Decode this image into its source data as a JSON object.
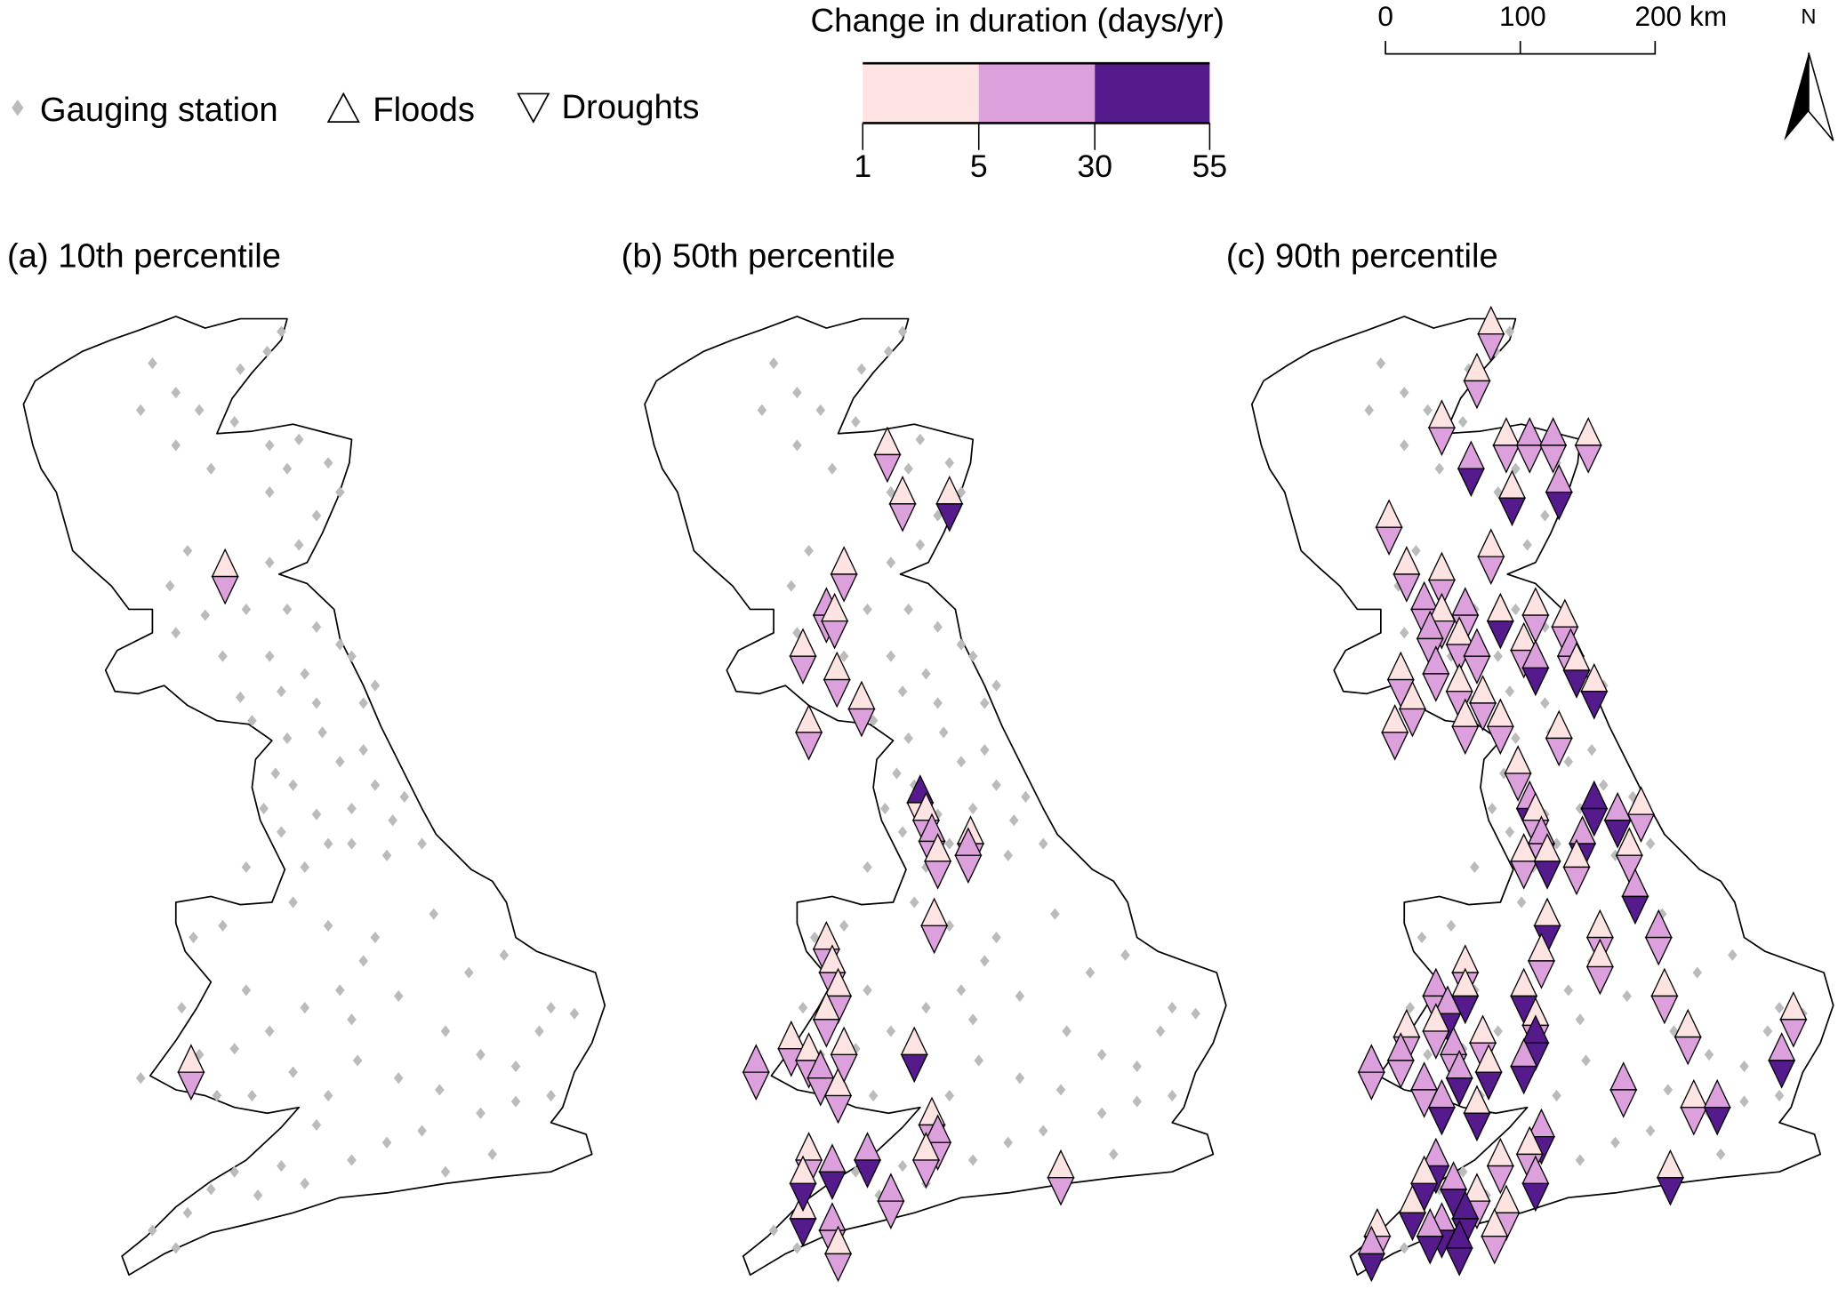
{
  "legend": {
    "station_label": "Gauging station",
    "floods_label": "Floods",
    "droughts_label": "Droughts",
    "colorbar_title": "Change in duration (days/yr)",
    "breaks": [
      "1",
      "5",
      "30",
      "55"
    ],
    "class_colors": [
      "#fde3e1",
      "#dca0dc",
      "#551a8b"
    ],
    "station_color": "#bbbbbb"
  },
  "scalebar": {
    "ticks": [
      "0",
      "100",
      "200 km"
    ]
  },
  "north_arrow": {
    "label": "N"
  },
  "panels": [
    {
      "title": "(a) 10th percentile"
    },
    {
      "title": "(b) 50th percentile"
    },
    {
      "title": "(c) 90th percentile"
    }
  ]
}
